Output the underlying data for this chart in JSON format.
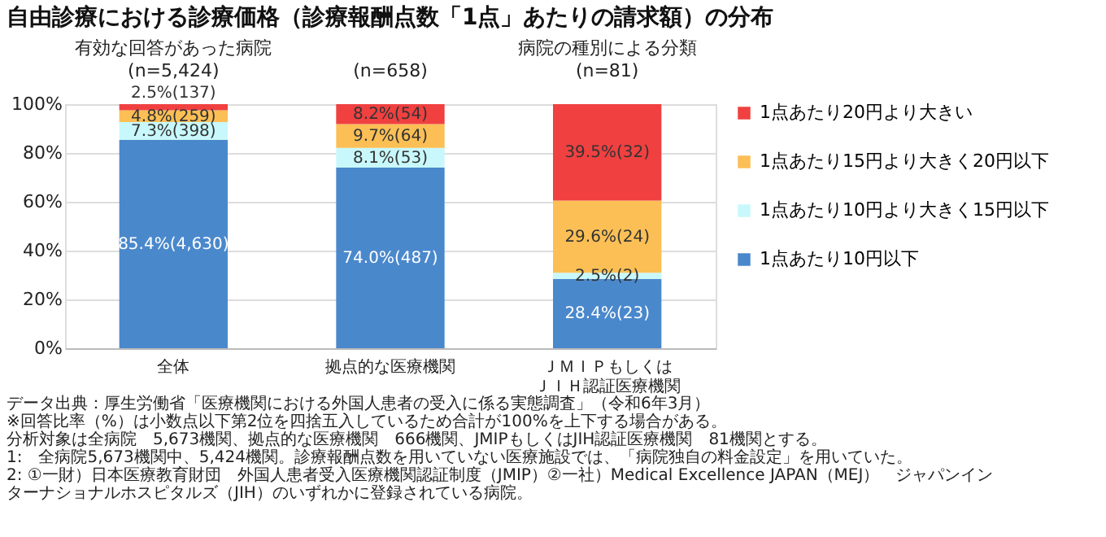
{
  "chart_data": {
    "type": "bar",
    "title": "自由診療における診療価格（診療報酬点数「1点」あたりの請求額）の分布",
    "categories": [
      "全体",
      "拠点的な医療機関",
      "ＪＭＩＰもしくはＪＩＨ認証医療機関"
    ],
    "stacked": true,
    "series": [
      {
        "name": "1点あたり10円以下",
        "color": "#4a88cc",
        "values": [
          85.4,
          74.0,
          28.4
        ],
        "value_labels": [
          "85.4%(4,630)",
          "74.0%(487)",
          "28.4%(23)"
        ]
      },
      {
        "name": "1点あたり10円より大きく15円以下",
        "color": "#c8f8fb",
        "values": [
          7.3,
          8.1,
          2.5
        ],
        "value_labels": [
          "7.3%(398)",
          "8.1%(53)",
          "2.5%(2)"
        ]
      },
      {
        "name": "1点あたり15円より大きく20円以下",
        "color": "#fbbf55",
        "values": [
          4.8,
          9.7,
          29.6
        ],
        "value_labels": [
          "4.8%(259)",
          "9.7%(64)",
          "29.6%(24)"
        ]
      },
      {
        "name": "1点あたり20円より大きい",
        "color": "#f04040",
        "values": [
          2.5,
          8.2,
          39.5
        ],
        "value_labels": [
          "2.5%(137)",
          "8.2%(54)",
          "39.5%(32)"
        ]
      }
    ],
    "ylim": [
      0,
      100
    ],
    "yticks": [
      {
        "value": 0,
        "label": "0%"
      },
      {
        "value": 20,
        "label": "20%"
      },
      {
        "value": 40,
        "label": "40%"
      },
      {
        "value": 60,
        "label": "60%"
      },
      {
        "value": 80,
        "label": "80%"
      },
      {
        "value": 100,
        "label": "100%"
      }
    ],
    "grid": "y",
    "legend": "right",
    "annotations": [
      "有効な回答があった病院",
      "(n=5,424)",
      "(n=658)",
      "病院の種別による分類",
      "(n=81)",
      "データ出典：厚生労働省「医療機関における外国人患者の受入に係る実態調査」（令和6年3月）",
      "※回答比率（%）は小数点以下第2位を四捨五入しているため合計が100%を上下する場合がある。",
      "分析対象は全病院　5,673機関、拠点的な医療機関　666機関、JMIPもしくはJIH認証医療機関　81機関とする。",
      "1:　全病院5,673機関中、5,424機関。診療報酬点数を用いていない医療施設では、「病院独自の料金設定」を用いていた。",
      "2: ①一財）日本医療教育財団　外国人患者受入医療機関認証制度（JMIP）②一社）Medical Excellence JAPAN（MEJ）　ジャパンインターナショナルホスピタルズ（JIH）のいずれかに登録されている病院。"
    ]
  }
}
